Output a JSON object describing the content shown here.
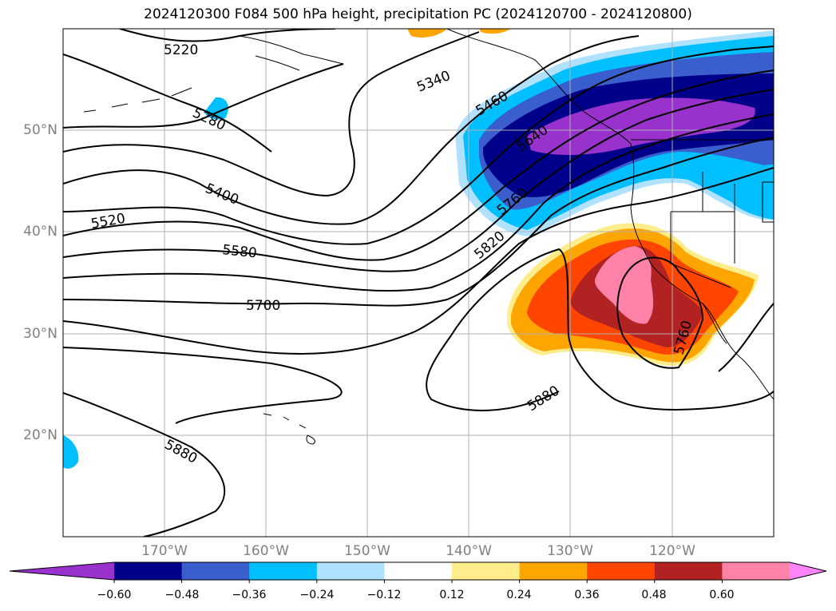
{
  "title": "2024120300 F084 500 hPa height, precipitation PC (2024120700 - 2024120800)",
  "map": {
    "projection": "cylindrical",
    "lon_range": [
      -180,
      -110
    ],
    "lat_range": [
      10,
      60
    ],
    "lat_labels": [
      "20°N",
      "30°N",
      "40°N",
      "50°N"
    ],
    "lon_labels": [
      "170°W",
      "160°W",
      "150°W",
      "140°W",
      "130°W",
      "120°W"
    ],
    "gridlines": true
  },
  "contours": {
    "variable": "500 hPa height",
    "labels": [
      "5220",
      "5280",
      "5340",
      "5400",
      "5460",
      "5520",
      "5580",
      "5640",
      "5700",
      "5760",
      "5820",
      "5880",
      "5880",
      "5760"
    ]
  },
  "colorbar": {
    "ticks": [
      "−0.60",
      "−0.48",
      "−0.36",
      "−0.24",
      "−0.12",
      "0.12",
      "0.24",
      "0.36",
      "0.48",
      "0.60"
    ],
    "colors": [
      "#9932cc",
      "#00008b",
      "#3a5fcd",
      "#00bfff",
      "#b0e2ff",
      "#ffffff",
      "#ffec8b",
      "#ffa500",
      "#ff4500",
      "#b22222",
      "#ff83a8",
      "#ff83fa"
    ]
  }
}
